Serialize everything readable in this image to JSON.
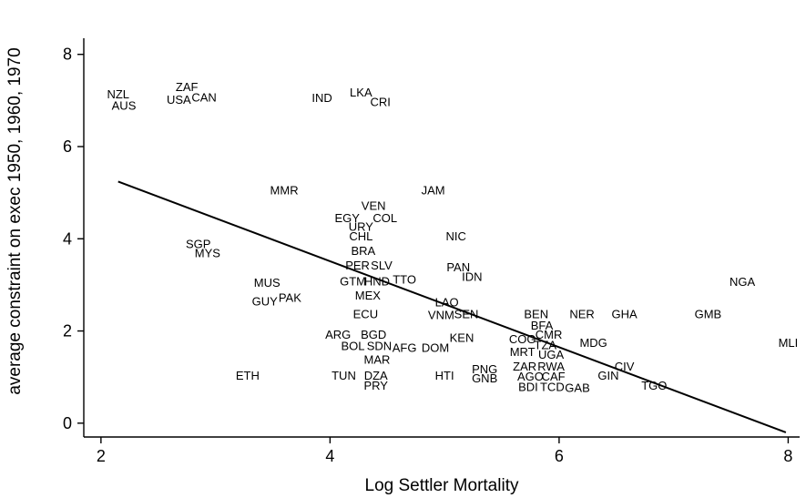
{
  "chart_data": {
    "type": "scatter",
    "title": "",
    "xlabel": "Log Settler Mortality",
    "ylabel": "average constraint on exec 1950, 1960, 1970",
    "xlim": [
      1.85,
      8.1
    ],
    "ylim": [
      -0.3,
      8.35
    ],
    "xticks": [
      "2",
      "4",
      "6",
      "8"
    ],
    "yticks": [
      "0",
      "2",
      "4",
      "6",
      "8"
    ],
    "grid": false,
    "legend": "none",
    "points": [
      {
        "label": "NZL",
        "x": 2.15,
        "y": 7.15
      },
      {
        "label": "AUS",
        "x": 2.2,
        "y": 6.9
      },
      {
        "label": "ZAF",
        "x": 2.75,
        "y": 7.3
      },
      {
        "label": "USA",
        "x": 2.68,
        "y": 7.03
      },
      {
        "label": "CAN",
        "x": 2.9,
        "y": 7.08
      },
      {
        "label": "IND",
        "x": 3.93,
        "y": 7.07
      },
      {
        "label": "LKA",
        "x": 4.27,
        "y": 7.18
      },
      {
        "label": "CRI",
        "x": 4.44,
        "y": 6.98
      },
      {
        "label": "MMR",
        "x": 3.6,
        "y": 5.06
      },
      {
        "label": "JAM",
        "x": 4.9,
        "y": 5.06
      },
      {
        "label": "VEN",
        "x": 4.38,
        "y": 4.73
      },
      {
        "label": "EGY",
        "x": 4.15,
        "y": 4.46
      },
      {
        "label": "COL",
        "x": 4.48,
        "y": 4.46
      },
      {
        "label": "URY",
        "x": 4.27,
        "y": 4.27
      },
      {
        "label": "CHL",
        "x": 4.27,
        "y": 4.06
      },
      {
        "label": "NIC",
        "x": 5.1,
        "y": 4.06
      },
      {
        "label": "SGP",
        "x": 2.85,
        "y": 3.9
      },
      {
        "label": "MYS",
        "x": 2.93,
        "y": 3.7
      },
      {
        "label": "BRA",
        "x": 4.29,
        "y": 3.75
      },
      {
        "label": "PER",
        "x": 4.24,
        "y": 3.43
      },
      {
        "label": "SLV",
        "x": 4.45,
        "y": 3.43
      },
      {
        "label": "PAN",
        "x": 5.12,
        "y": 3.39
      },
      {
        "label": "IDN",
        "x": 5.24,
        "y": 3.19
      },
      {
        "label": "GTM",
        "x": 4.2,
        "y": 3.09
      },
      {
        "label": "HND",
        "x": 4.41,
        "y": 3.09
      },
      {
        "label": "TTO",
        "x": 4.65,
        "y": 3.13
      },
      {
        "label": "NGA",
        "x": 7.6,
        "y": 3.08
      },
      {
        "label": "MUS",
        "x": 3.45,
        "y": 3.06
      },
      {
        "label": "PAK",
        "x": 3.65,
        "y": 2.73
      },
      {
        "label": "GUY",
        "x": 3.43,
        "y": 2.65
      },
      {
        "label": "MEX",
        "x": 4.33,
        "y": 2.78
      },
      {
        "label": "LAO",
        "x": 5.02,
        "y": 2.63
      },
      {
        "label": "ECU",
        "x": 4.31,
        "y": 2.38
      },
      {
        "label": "VNM",
        "x": 4.97,
        "y": 2.36
      },
      {
        "label": "SEN",
        "x": 5.19,
        "y": 2.38
      },
      {
        "label": "BEN",
        "x": 5.8,
        "y": 2.38
      },
      {
        "label": "NER",
        "x": 6.2,
        "y": 2.38
      },
      {
        "label": "GHA",
        "x": 6.57,
        "y": 2.38
      },
      {
        "label": "GMB",
        "x": 7.3,
        "y": 2.38
      },
      {
        "label": "BFA",
        "x": 5.85,
        "y": 2.13
      },
      {
        "label": "ARG",
        "x": 4.07,
        "y": 1.93
      },
      {
        "label": "BGD",
        "x": 4.38,
        "y": 1.93
      },
      {
        "label": "CMR",
        "x": 5.91,
        "y": 1.93
      },
      {
        "label": "KEN",
        "x": 5.15,
        "y": 1.86
      },
      {
        "label": "COG",
        "x": 5.68,
        "y": 1.83
      },
      {
        "label": "BOL",
        "x": 4.2,
        "y": 1.68
      },
      {
        "label": "SDN",
        "x": 4.43,
        "y": 1.68
      },
      {
        "label": "AFG",
        "x": 4.65,
        "y": 1.65
      },
      {
        "label": "DOM",
        "x": 4.92,
        "y": 1.65
      },
      {
        "label": "TZA",
        "x": 5.88,
        "y": 1.7
      },
      {
        "label": "MDG",
        "x": 6.3,
        "y": 1.75
      },
      {
        "label": "MLI",
        "x": 8.0,
        "y": 1.75
      },
      {
        "label": "MRT",
        "x": 5.68,
        "y": 1.56
      },
      {
        "label": "UGA",
        "x": 5.93,
        "y": 1.5
      },
      {
        "label": "MAR",
        "x": 4.41,
        "y": 1.39
      },
      {
        "label": "CIV",
        "x": 6.57,
        "y": 1.24
      },
      {
        "label": "ZAR",
        "x": 5.7,
        "y": 1.24
      },
      {
        "label": "RWA",
        "x": 5.93,
        "y": 1.24
      },
      {
        "label": "PNG",
        "x": 5.35,
        "y": 1.18
      },
      {
        "label": "ETH",
        "x": 3.28,
        "y": 1.04
      },
      {
        "label": "TUN",
        "x": 4.12,
        "y": 1.04
      },
      {
        "label": "DZA",
        "x": 4.4,
        "y": 1.04
      },
      {
        "label": "HTI",
        "x": 5.0,
        "y": 1.04
      },
      {
        "label": "GIN",
        "x": 6.43,
        "y": 1.04
      },
      {
        "label": "AGO",
        "x": 5.75,
        "y": 1.02
      },
      {
        "label": "CAF",
        "x": 5.95,
        "y": 1.02
      },
      {
        "label": "GNB",
        "x": 5.35,
        "y": 0.98
      },
      {
        "label": "PRY",
        "x": 4.4,
        "y": 0.83
      },
      {
        "label": "TGO",
        "x": 6.83,
        "y": 0.83
      },
      {
        "label": "BDI",
        "x": 5.73,
        "y": 0.8
      },
      {
        "label": "TCD",
        "x": 5.94,
        "y": 0.8
      },
      {
        "label": "GAB",
        "x": 6.16,
        "y": 0.78
      }
    ],
    "fit_line": {
      "x": [
        2.15,
        7.98
      ],
      "y": [
        5.24,
        -0.2
      ]
    }
  }
}
